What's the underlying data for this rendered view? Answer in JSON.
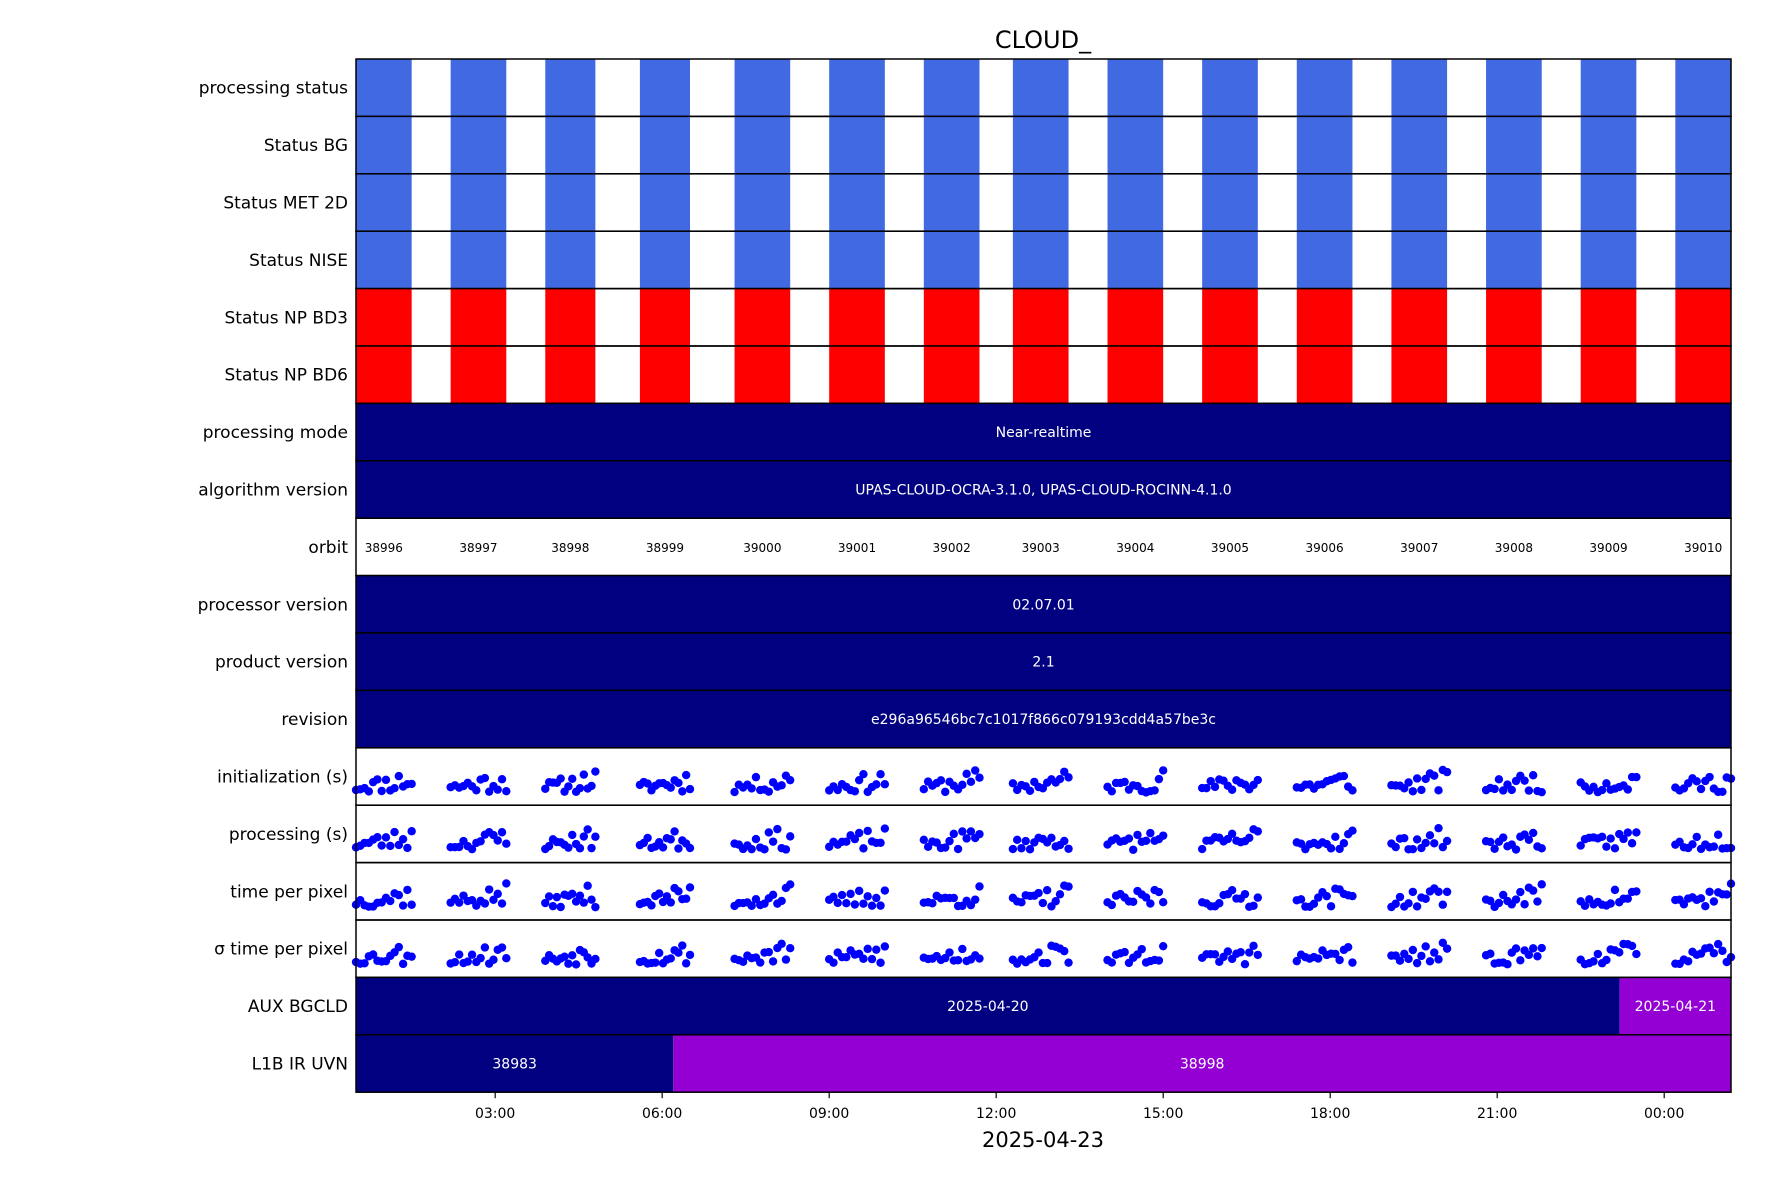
{
  "chart_data": {
    "type": "timeline",
    "title": "CLOUD_",
    "xlabel": "2025-04-23",
    "x_range_hours": [
      0.5,
      25.2
    ],
    "x_ticks": [
      {
        "hour": 3,
        "label": "03:00"
      },
      {
        "hour": 6,
        "label": "06:00"
      },
      {
        "hour": 9,
        "label": "09:00"
      },
      {
        "hour": 12,
        "label": "12:00"
      },
      {
        "hour": 15,
        "label": "15:00"
      },
      {
        "hour": 18,
        "label": "18:00"
      },
      {
        "hour": 21,
        "label": "21:00"
      },
      {
        "hour": 24,
        "label": "00:00"
      }
    ],
    "orbit_segments_hours": [
      [
        0.5,
        1.5
      ],
      [
        2.2,
        3.2
      ],
      [
        3.9,
        4.8
      ],
      [
        5.6,
        6.5
      ],
      [
        7.3,
        8.3
      ],
      [
        9.0,
        10.0
      ],
      [
        10.7,
        11.7
      ],
      [
        12.3,
        13.3
      ],
      [
        14.0,
        15.0
      ],
      [
        15.7,
        16.7
      ],
      [
        17.4,
        18.4
      ],
      [
        19.1,
        20.1
      ],
      [
        20.8,
        21.8
      ],
      [
        22.5,
        23.5
      ],
      [
        24.2,
        25.2
      ]
    ],
    "status_rows": [
      {
        "label": "processing status",
        "color": "#4169e1"
      },
      {
        "label": "Status BG",
        "color": "#4169e1"
      },
      {
        "label": "Status MET 2D",
        "color": "#4169e1"
      },
      {
        "label": "Status NISE",
        "color": "#4169e1"
      },
      {
        "label": "Status NP BD3",
        "color": "#ff0000"
      },
      {
        "label": "Status NP BD6",
        "color": "#ff0000"
      }
    ],
    "text_rows": [
      {
        "label": "processing mode",
        "segments": [
          {
            "start": 0.5,
            "end": 25.2,
            "text": "Near-realtime",
            "color": "#000080"
          }
        ]
      },
      {
        "label": "algorithm version",
        "segments": [
          {
            "start": 0.5,
            "end": 25.2,
            "text": "UPAS-CLOUD-OCRA-3.1.0, UPAS-CLOUD-ROCINN-4.1.0",
            "color": "#000080"
          }
        ]
      }
    ],
    "orbit_row": {
      "label": "orbit",
      "orbits": [
        "38996",
        "38997",
        "38998",
        "38999",
        "39000",
        "39001",
        "39002",
        "39003",
        "39004",
        "39005",
        "39006",
        "39007",
        "39008",
        "39009",
        "39010"
      ]
    },
    "version_rows": [
      {
        "label": "processor version",
        "segments": [
          {
            "start": 0.5,
            "end": 25.2,
            "text": "02.07.01",
            "color": "#000080"
          }
        ]
      },
      {
        "label": "product version",
        "segments": [
          {
            "start": 0.5,
            "end": 25.2,
            "text": "2.1",
            "color": "#000080"
          }
        ]
      },
      {
        "label": "revision",
        "segments": [
          {
            "start": 0.5,
            "end": 25.2,
            "text": "e296a96546bc7c1017f866c079193cdd4a57be3c",
            "color": "#000080"
          }
        ]
      }
    ],
    "scatter_rows": [
      {
        "label": "initialization (s)",
        "seed": 11,
        "color": "#0000ff"
      },
      {
        "label": "processing (s)",
        "seed": 23,
        "color": "#0000ff"
      },
      {
        "label": "time per pixel",
        "seed": 37,
        "color": "#0000ff"
      },
      {
        "label": "σ time per pixel",
        "seed": 53,
        "color": "#0000ff"
      }
    ],
    "aux_rows": [
      {
        "label": "AUX BGCLD",
        "segments": [
          {
            "start": 0.5,
            "end": 23.2,
            "text": "2025-04-20",
            "color": "#000080"
          },
          {
            "start": 23.2,
            "end": 25.2,
            "text": "2025-04-21",
            "color": "#9400d3"
          }
        ]
      },
      {
        "label": "L1B IR UVN",
        "segments": [
          {
            "start": 0.5,
            "end": 6.2,
            "text": "38983",
            "color": "#000080"
          },
          {
            "start": 6.2,
            "end": 25.2,
            "text": "38998",
            "color": "#9400d3"
          }
        ]
      }
    ]
  }
}
